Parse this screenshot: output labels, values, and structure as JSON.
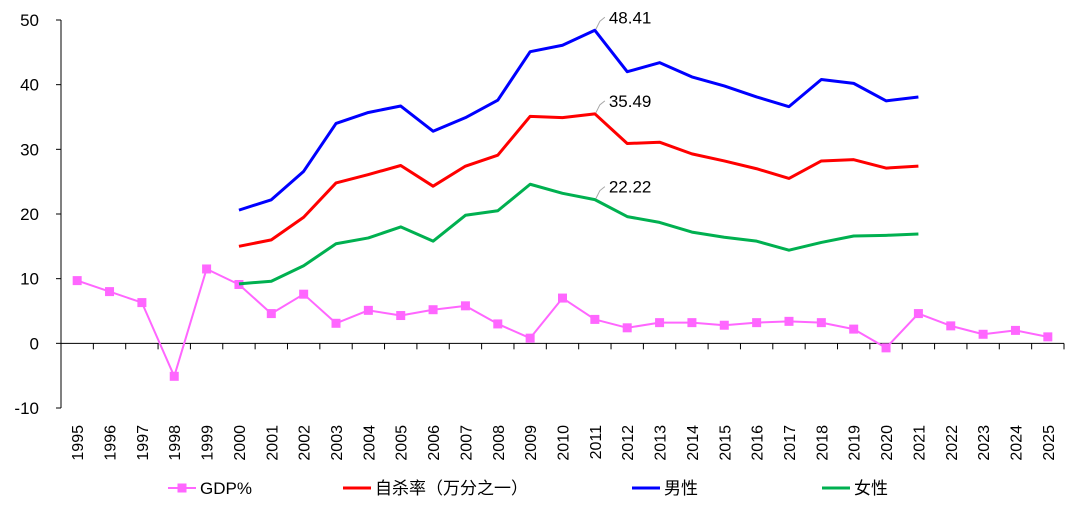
{
  "chart_data": {
    "type": "line",
    "x": [
      "1995",
      "1996",
      "1997",
      "1998",
      "1999",
      "2000",
      "2001",
      "2002",
      "2003",
      "2004",
      "2005",
      "2006",
      "2007",
      "2008",
      "2009",
      "2010",
      "2011",
      "2012",
      "2013",
      "2014",
      "2015",
      "2016",
      "2017",
      "2018",
      "2019",
      "2020",
      "2021",
      "2022",
      "2023",
      "2024",
      "2025"
    ],
    "ylim": [
      -10,
      50
    ],
    "yticks": [
      -10,
      0,
      10,
      20,
      30,
      40,
      50
    ],
    "grid": false,
    "legend_position": "bottom",
    "series": [
      {
        "name": "GDP%",
        "color": "#FF66FF",
        "marker": "square",
        "values": [
          9.7,
          8.0,
          6.3,
          -5.1,
          11.5,
          9.1,
          4.6,
          7.6,
          3.1,
          5.1,
          4.3,
          5.2,
          5.8,
          3.0,
          0.8,
          7.0,
          3.7,
          2.4,
          3.2,
          3.2,
          2.8,
          3.2,
          3.4,
          3.2,
          2.2,
          -0.7,
          4.6,
          2.7,
          1.4,
          2.0,
          1.0
        ]
      },
      {
        "name": "自杀率（万分之一）",
        "color": "#FF0000",
        "marker": "none",
        "values": [
          null,
          null,
          null,
          null,
          null,
          15.0,
          16.0,
          19.5,
          24.8,
          26.1,
          27.5,
          24.3,
          27.4,
          29.1,
          35.1,
          34.9,
          35.49,
          30.9,
          31.1,
          29.3,
          28.2,
          27.0,
          25.5,
          28.2,
          28.4,
          27.1,
          27.4,
          null,
          null,
          null,
          null
        ]
      },
      {
        "name": "男性",
        "color": "#0000FF",
        "marker": "none",
        "values": [
          null,
          null,
          null,
          null,
          null,
          20.6,
          22.2,
          26.6,
          34.0,
          35.7,
          36.7,
          32.8,
          34.9,
          37.6,
          45.1,
          46.1,
          48.41,
          42.0,
          43.4,
          41.2,
          39.8,
          38.1,
          36.6,
          40.8,
          40.2,
          37.5,
          38.1,
          null,
          null,
          null,
          null
        ]
      },
      {
        "name": "女性",
        "color": "#00B050",
        "marker": "none",
        "values": [
          null,
          null,
          null,
          null,
          null,
          9.2,
          9.6,
          12.0,
          15.4,
          16.3,
          18.0,
          15.8,
          19.8,
          20.5,
          24.6,
          23.2,
          22.22,
          19.6,
          18.7,
          17.2,
          16.4,
          15.8,
          14.4,
          15.6,
          16.6,
          16.7,
          16.9,
          null,
          null,
          null,
          null
        ]
      }
    ],
    "annotations": [
      {
        "series": "男性",
        "x": "2011",
        "text": "48.41"
      },
      {
        "series": "自杀率（万分之一）",
        "x": "2011",
        "text": "35.49"
      },
      {
        "series": "女性",
        "x": "2011",
        "text": "22.22"
      }
    ]
  }
}
